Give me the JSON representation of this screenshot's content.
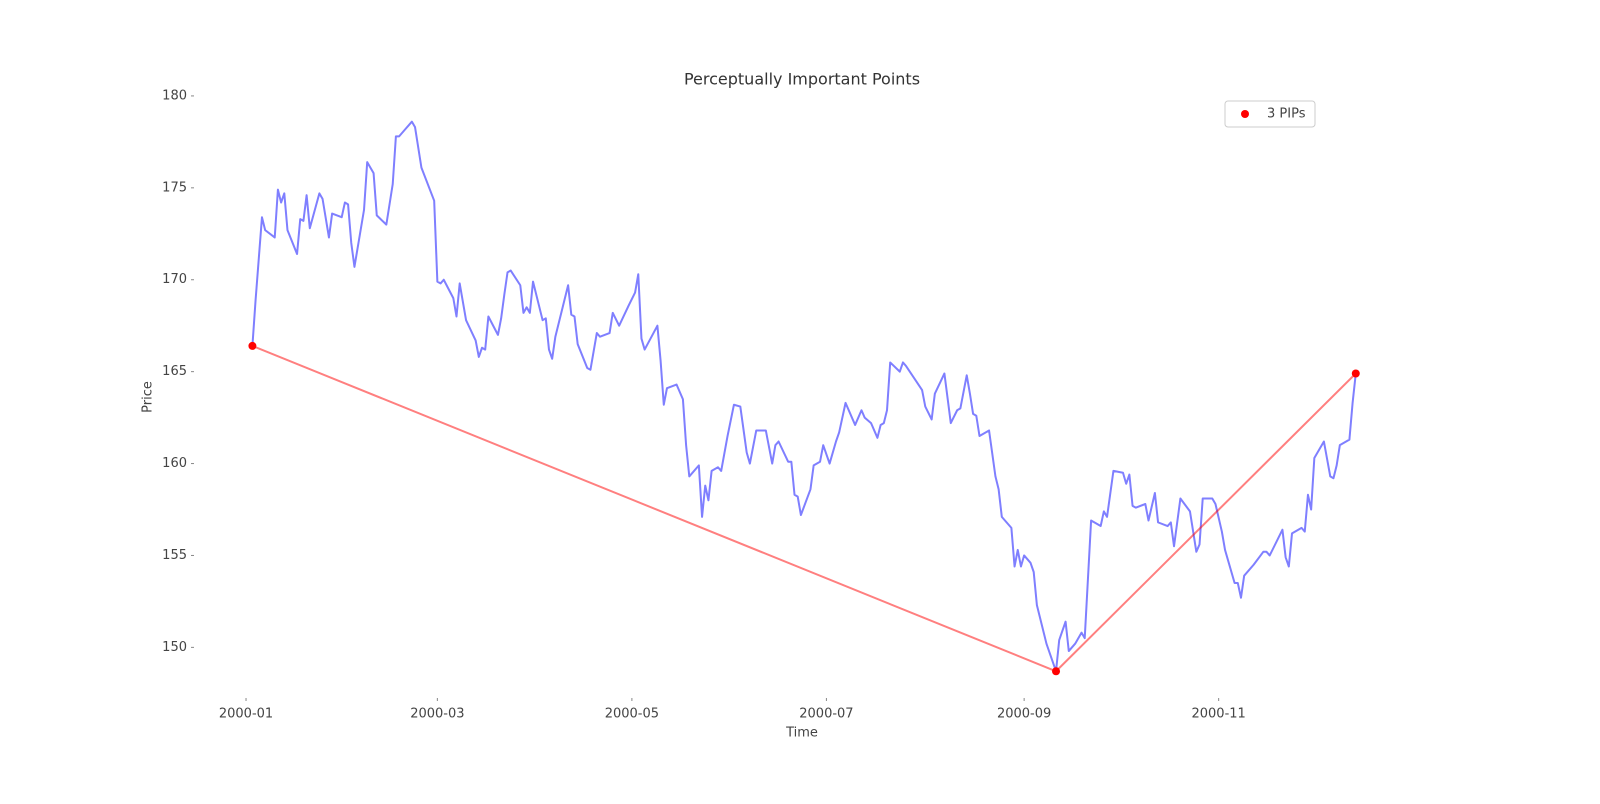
{
  "chart_data": {
    "type": "line",
    "title": "Perceptually Important Points",
    "xlabel": "Time",
    "ylabel": "Price",
    "xlim": [
      -16,
      365
    ],
    "ylim": [
      147.3,
      181.9
    ],
    "xticks": [
      {
        "value": 0,
        "label": "2000-01"
      },
      {
        "value": 60,
        "label": "2000-03"
      },
      {
        "value": 121,
        "label": "2000-05"
      },
      {
        "value": 182,
        "label": "2000-07"
      },
      {
        "value": 244,
        "label": "2000-09"
      },
      {
        "value": 305,
        "label": "2000-11"
      }
    ],
    "yticks": [
      150,
      155,
      160,
      165,
      170,
      175,
      180
    ],
    "legend": "upper right",
    "series": [
      {
        "color": "#7f7fff",
        "markers": false,
        "x": [
          2,
          3,
          5,
          6,
          9,
          10,
          11,
          12,
          13,
          16,
          17,
          18,
          19,
          20,
          23,
          24,
          26,
          27,
          30,
          31,
          32,
          33,
          34,
          37,
          38,
          40,
          41,
          44,
          46,
          47,
          48,
          50,
          52,
          53,
          55,
          59,
          60,
          61,
          62,
          65,
          66,
          67,
          69,
          72,
          73,
          74,
          75,
          76,
          79,
          80,
          81,
          82,
          83,
          86,
          87,
          88,
          89,
          90,
          93,
          94,
          95,
          96,
          97,
          101,
          102,
          103,
          104,
          107,
          108,
          109,
          110,
          111,
          114,
          115,
          117,
          120,
          122,
          123,
          124,
          125,
          129,
          130,
          131,
          132,
          135,
          137,
          138,
          139,
          142,
          143,
          144,
          145,
          146,
          148,
          149,
          151,
          153,
          155,
          157,
          158,
          160,
          163,
          165,
          166,
          167,
          170,
          171,
          172,
          173,
          174,
          177,
          178,
          180,
          181,
          183,
          185,
          186,
          188,
          191,
          193,
          194,
          196,
          198,
          199,
          200,
          201,
          202,
          205,
          206,
          207,
          212,
          213,
          215,
          216,
          219,
          221,
          223,
          224,
          226,
          227,
          228,
          229,
          230,
          233,
          235,
          236,
          237,
          240,
          241,
          242,
          243,
          244,
          246,
          247,
          248,
          251,
          254,
          255,
          257,
          258,
          260,
          262,
          263,
          265,
          268,
          269,
          270,
          272,
          275,
          276,
          277,
          278,
          279,
          282,
          283,
          285,
          286,
          289,
          290,
          291,
          293,
          296,
          297,
          298,
          299,
          300,
          303,
          304,
          306,
          307,
          310,
          311,
          312,
          313,
          316,
          319,
          320,
          321,
          325,
          326,
          327,
          328,
          331,
          332,
          333,
          334,
          335,
          338,
          340,
          341,
          342,
          343,
          346,
          347,
          348
        ],
        "values": [
          166.4,
          168.9,
          173.4,
          172.7,
          172.3,
          174.9,
          174.2,
          174.7,
          172.7,
          171.4,
          173.3,
          173.2,
          174.6,
          172.8,
          174.7,
          174.4,
          172.3,
          173.6,
          173.4,
          174.2,
          174.1,
          172.0,
          170.7,
          173.8,
          176.4,
          175.8,
          173.5,
          173.0,
          175.2,
          177.8,
          177.8,
          178.2,
          178.6,
          178.3,
          176.1,
          174.3,
          169.9,
          169.8,
          170.0,
          169.0,
          168.0,
          169.8,
          167.8,
          166.7,
          165.8,
          166.3,
          166.2,
          168.0,
          167.0,
          167.9,
          169.2,
          170.4,
          170.5,
          169.7,
          168.2,
          168.5,
          168.2,
          169.9,
          167.8,
          167.9,
          166.2,
          165.7,
          166.9,
          169.7,
          168.1,
          168.0,
          166.5,
          165.2,
          165.1,
          166.1,
          167.1,
          166.9,
          167.1,
          168.2,
          167.5,
          168.6,
          169.3,
          170.3,
          166.8,
          166.2,
          167.5,
          165.6,
          163.2,
          164.1,
          164.3,
          163.5,
          161.0,
          159.3,
          159.9,
          157.1,
          158.8,
          158.0,
          159.6,
          159.8,
          159.6,
          161.5,
          163.2,
          163.1,
          160.6,
          160.0,
          161.8,
          161.8,
          160.0,
          161.0,
          161.2,
          160.1,
          160.1,
          158.3,
          158.2,
          157.2,
          158.6,
          159.9,
          160.1,
          161.0,
          160.0,
          161.2,
          161.7,
          163.3,
          162.1,
          162.9,
          162.5,
          162.2,
          161.4,
          162.1,
          162.2,
          162.9,
          165.5,
          165.0,
          165.5,
          165.3,
          164.0,
          163.1,
          162.4,
          163.8,
          164.9,
          162.2,
          162.9,
          163.0,
          164.8,
          163.8,
          162.7,
          162.6,
          161.5,
          161.8,
          159.3,
          158.6,
          157.1,
          156.5,
          154.4,
          155.3,
          154.4,
          155.0,
          154.6,
          154.1,
          152.3,
          150.2,
          148.7,
          150.4,
          151.4,
          149.8,
          150.2,
          150.8,
          150.5,
          156.9,
          156.6,
          157.4,
          157.1,
          159.6,
          159.5,
          158.9,
          159.4,
          157.7,
          157.6,
          157.8,
          156.9,
          158.4,
          156.8,
          156.6,
          156.8,
          155.5,
          158.1,
          157.4,
          156.3,
          155.2,
          155.6,
          158.1,
          158.1,
          157.8,
          156.3,
          155.3,
          153.5,
          153.5,
          152.7,
          153.9,
          154.5,
          155.2,
          155.2,
          155.0,
          156.4,
          154.9,
          154.4,
          156.2,
          156.5,
          156.3,
          158.3,
          157.5,
          160.3,
          161.2,
          159.3,
          159.2,
          159.9,
          161.0,
          161.3,
          163.3,
          164.9
        ]
      },
      {
        "name": "3 PIPs",
        "color": "#ff0000",
        "markers": true,
        "x": [
          2,
          254,
          348
        ],
        "values": [
          166.4,
          148.7,
          164.9
        ]
      }
    ]
  }
}
